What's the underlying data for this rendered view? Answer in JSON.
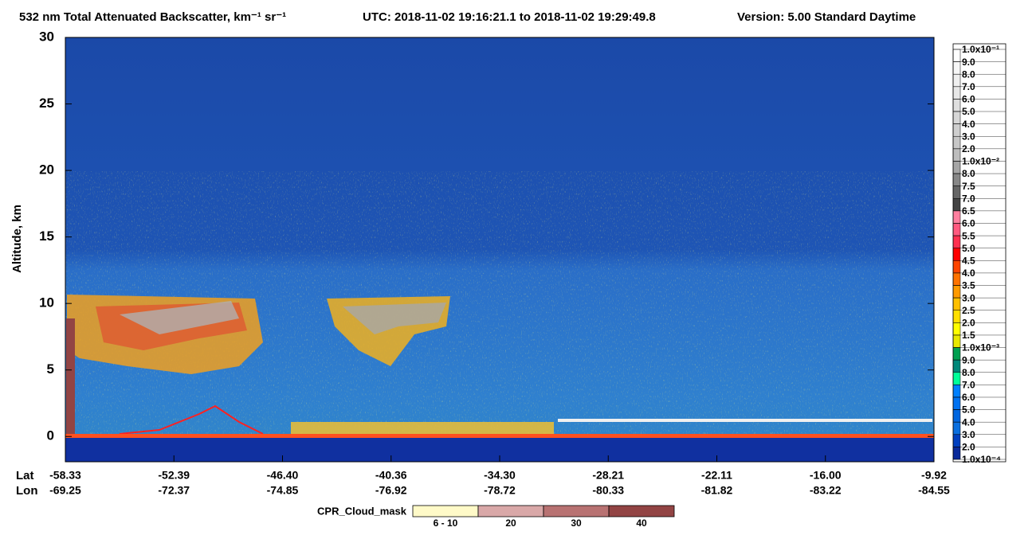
{
  "chart_data": {
    "type": "heatmap",
    "title": "532 nm Total Attenuated Backscatter, km⁻¹ sr⁻¹",
    "subtitle": "UTC:  2018-11-02 19:16:21.1  to  2018-11-02 19:29:49.8",
    "version": "Version: 5.00  Standard  Daytime",
    "ylabel": "Altitude, km",
    "ylim": [
      -1.9,
      30
    ],
    "yticks": [
      0,
      5,
      10,
      15,
      20,
      25,
      30
    ],
    "xlabels": {
      "lat_title": "Lat",
      "lon_title": "Lon",
      "lat": [
        "-58.33",
        "-52.39",
        "-46.40",
        "-40.36",
        "-34.30",
        "-28.21",
        "-22.11",
        "-16.00",
        "-9.92"
      ],
      "lon": [
        "-69.25",
        "-72.37",
        "-74.85",
        "-76.92",
        "-78.72",
        "-80.33",
        "-81.82",
        "-83.22",
        "-84.55"
      ]
    },
    "colorbar": {
      "labels": [
        "1.0x10⁻¹",
        "9.0",
        "8.0",
        "7.0",
        "6.0",
        "5.0",
        "4.0",
        "3.0",
        "2.0",
        "1.0x10⁻²",
        "8.0",
        "7.5",
        "7.0",
        "6.5",
        "6.0",
        "5.5",
        "5.0",
        "4.5",
        "4.0",
        "3.5",
        "3.0",
        "2.5",
        "2.0",
        "1.5",
        "1.0x10⁻³",
        "9.0",
        "8.0",
        "7.0",
        "6.0",
        "5.0",
        "4.0",
        "3.0",
        "2.0",
        "1.0x10⁻⁴"
      ],
      "colors": [
        "#ffffff",
        "#f7f7f7",
        "#efefef",
        "#e7e7e7",
        "#dfdfdf",
        "#d7d7d7",
        "#cfcfcf",
        "#c7c7c7",
        "#bdbdbd",
        "#a6a6a6",
        "#888888",
        "#666666",
        "#444444",
        "#ff80a0",
        "#ff5a80",
        "#ff3050",
        "#ff0000",
        "#ff4500",
        "#ff7300",
        "#ff9a00",
        "#ffc000",
        "#ffe000",
        "#ffff00",
        "#e8e800",
        "#00a050",
        "#00887a",
        "#00ff99",
        "#0080ff",
        "#0072f2",
        "#0066e0",
        "#0a6fe0",
        "#0040c0",
        "#0a2a9a"
      ]
    },
    "cpr_legend": {
      "title": "CPR_Cloud_mask",
      "labels": [
        "6 - 10",
        "20",
        "30",
        "40"
      ],
      "colors": [
        "#fffac8",
        "#d9a8a8",
        "#b87272",
        "#924444"
      ]
    }
  }
}
